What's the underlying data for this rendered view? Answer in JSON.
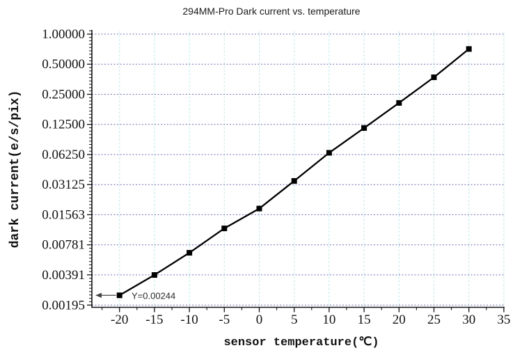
{
  "title": "294MM-Pro Dark current vs. temperature",
  "chart_data": {
    "type": "line",
    "title": "294MM-Pro Dark current vs. temperature",
    "xlabel": "sensor temperature(℃)",
    "ylabel": "dark current(e/s/pix)",
    "x": [
      -20,
      -15,
      -10,
      -5,
      0,
      5,
      10,
      15,
      20,
      25,
      30
    ],
    "y": [
      0.00244,
      0.0039,
      0.0065,
      0.0114,
      0.018,
      0.034,
      0.065,
      0.115,
      0.205,
      0.37,
      0.71
    ],
    "x_ticks": {
      "major": [
        -20,
        -15,
        -10,
        -5,
        0,
        5,
        10,
        15,
        20,
        25,
        30,
        35
      ],
      "minor_step": 2.5
    },
    "y_ticks": {
      "labels": [
        "1.00000",
        "0.50000",
        "0.25000",
        "0.12500",
        "0.06250",
        "0.03125",
        "0.01563",
        "0.00781",
        "0.00391",
        "0.00195"
      ],
      "values": [
        1.0,
        0.5,
        0.25,
        0.125,
        0.0625,
        0.03125,
        0.01563,
        0.00781,
        0.00391,
        0.00195
      ]
    },
    "y_scale": "log2",
    "xlim": [
      -24,
      35.3
    ],
    "ylim": [
      0.00184,
      1.1
    ],
    "grid": {
      "horizontal": "dotted",
      "vertical": "dashed"
    },
    "legend": "none",
    "annotation": {
      "text": "Y=0.00244",
      "x": -20,
      "y": 0.00244
    },
    "marker": "filled-square",
    "colors": {
      "series": "#000000",
      "marker": "#000000",
      "h_grid": "#6f6fb5",
      "v_grid": "#bfe9e9",
      "axis": "#111111",
      "annotation_arrow": "#444444"
    }
  }
}
